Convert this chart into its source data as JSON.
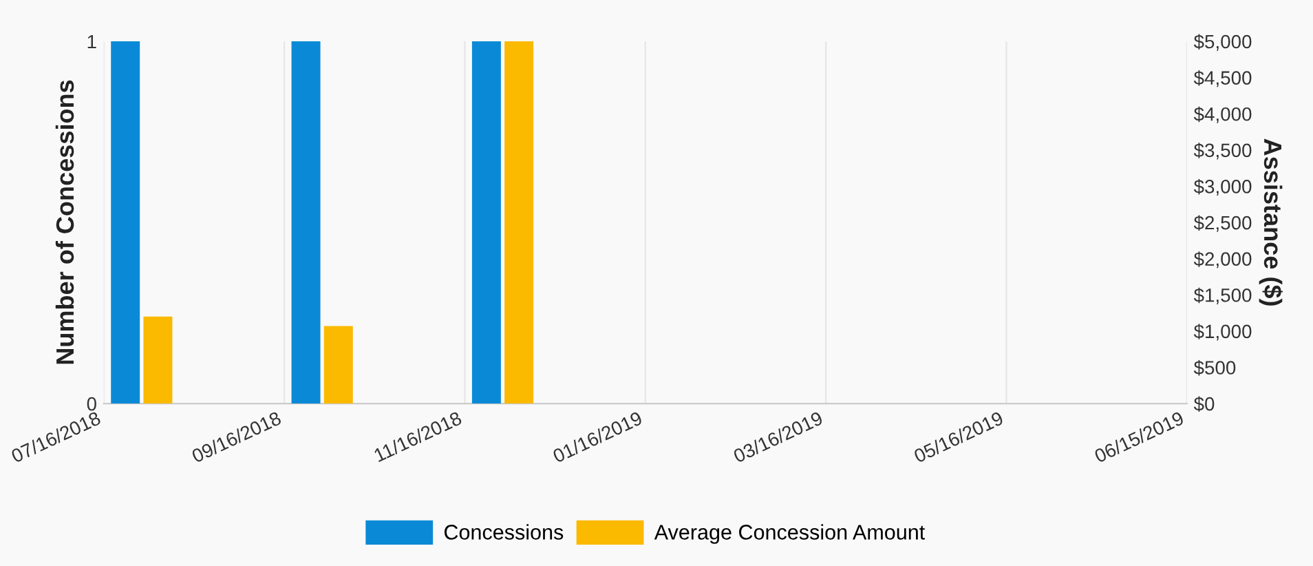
{
  "chart_data": {
    "type": "bar",
    "categories": [
      "07/16/2018",
      "09/16/2018",
      "11/16/2018",
      "01/16/2019",
      "03/16/2019",
      "05/16/2019",
      "06/15/2019"
    ],
    "series": [
      {
        "name": "Concessions",
        "color": "#0a8ad6",
        "values": [
          1,
          1,
          1,
          0,
          0,
          0,
          null
        ]
      },
      {
        "name": "Average Concession Amount",
        "color": "#fbb900",
        "axis": "y2",
        "values": [
          1200,
          1070,
          5000,
          0,
          0,
          0,
          null
        ]
      }
    ],
    "ylabel": "Number of Concessions",
    "y2label": "Assistance ($)",
    "ylim": [
      0,
      1
    ],
    "yticks": [
      0,
      1
    ],
    "y2lim": [
      0,
      5000
    ],
    "y2ticks": [
      {
        "value": 0,
        "label": "$0"
      },
      {
        "value": 500,
        "label": "$500"
      },
      {
        "value": 1000,
        "label": "$1,000"
      },
      {
        "value": 1500,
        "label": "$1,500"
      },
      {
        "value": 2000,
        "label": "$2,000"
      },
      {
        "value": 2500,
        "label": "$2,500"
      },
      {
        "value": 3000,
        "label": "$3,000"
      },
      {
        "value": 3500,
        "label": "$3,500"
      },
      {
        "value": 4000,
        "label": "$4,000"
      },
      {
        "value": 4500,
        "label": "$4,500"
      },
      {
        "value": 5000,
        "label": "$5,000"
      }
    ],
    "grid": "x",
    "legend": "bottom"
  }
}
